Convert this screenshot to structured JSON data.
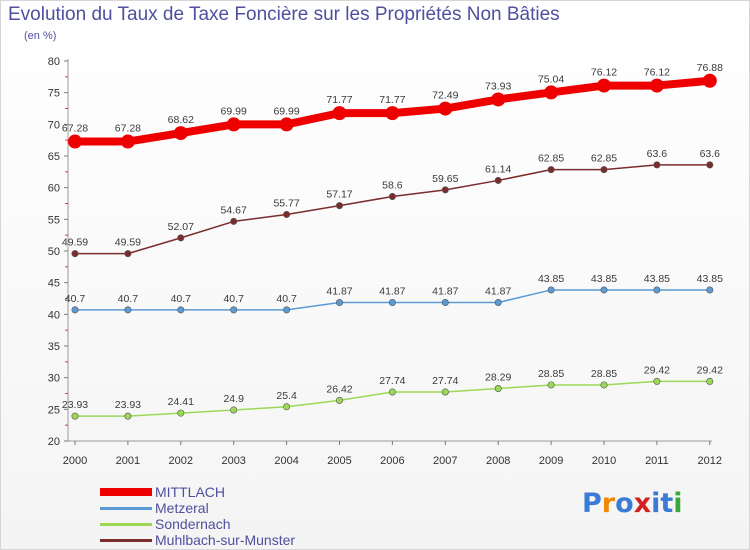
{
  "header": {
    "title": "Evolution du Taux de Taxe Foncière sur les Propriétés Non Bâties",
    "unit": "(en %)"
  },
  "logo": {
    "text": "Proxiti",
    "letters": [
      "P",
      "r",
      "o",
      "x",
      "i",
      "t",
      "i"
    ],
    "colors": [
      "#3a7bd5",
      "#f08a00",
      "#3a7bd5",
      "#d62020",
      "#3a7bd5",
      "#3a7bd5",
      "#39a839"
    ]
  },
  "colors": {
    "MITTLACH": "#ee0000",
    "Metzeral": "#5b9bd5",
    "Sondernach": "#9ad856",
    "Muhlbach-sur-Munster": "#7b2d2d"
  },
  "chart_data": {
    "type": "line",
    "title": "Evolution du Taux de Taxe Foncière sur les Propriétés Non Bâties",
    "ylabel": "(en %)",
    "xlabel": "",
    "categories": [
      "2000",
      "2001",
      "2002",
      "2003",
      "2004",
      "2005",
      "2006",
      "2007",
      "2008",
      "2009",
      "2010",
      "2011",
      "2012"
    ],
    "ylim": [
      20,
      80
    ],
    "yticks": [
      20,
      25,
      30,
      35,
      40,
      45,
      50,
      55,
      60,
      65,
      70,
      75,
      80
    ],
    "grid": false,
    "legend_position": "bottom-left",
    "series": [
      {
        "name": "MITTLACH",
        "values": [
          67.28,
          67.28,
          68.62,
          69.99,
          69.99,
          71.77,
          71.77,
          72.49,
          73.93,
          75.04,
          76.12,
          76.12,
          76.88
        ],
        "labels": [
          "67.28",
          "67.28",
          "68.62",
          "69.99",
          "69.99",
          "71.77",
          "71.77",
          "72.49",
          "73.93",
          "75.04",
          "76.12",
          "76.12",
          "76.88"
        ]
      },
      {
        "name": "Metzeral",
        "values": [
          40.7,
          40.7,
          40.7,
          40.7,
          40.7,
          41.87,
          41.87,
          41.87,
          41.87,
          43.85,
          43.85,
          43.85,
          43.85
        ],
        "labels": [
          "40.7",
          "40.7",
          "40.7",
          "40.7",
          "40.7",
          "41.87",
          "41.87",
          "41.87",
          "41.87",
          "43.85",
          "43.85",
          "43.85",
          "43.85"
        ]
      },
      {
        "name": "Sondernach",
        "values": [
          23.93,
          23.93,
          24.41,
          24.9,
          25.4,
          26.42,
          27.74,
          27.74,
          28.29,
          28.85,
          28.85,
          29.42,
          29.42
        ],
        "labels": [
          "23.93",
          "23.93",
          "24.41",
          "24.9",
          "25.4",
          "26.42",
          "27.74",
          "27.74",
          "28.29",
          "28.85",
          "28.85",
          "29.42",
          "29.42"
        ]
      },
      {
        "name": "Muhlbach-sur-Munster",
        "values": [
          49.59,
          49.59,
          52.07,
          54.67,
          55.77,
          57.17,
          58.6,
          59.65,
          61.14,
          62.85,
          62.85,
          63.6,
          63.6
        ],
        "labels": [
          "49.59",
          "49.59",
          "52.07",
          "54.67",
          "55.77",
          "57.17",
          "58.6",
          "59.65",
          "61.14",
          "62.85",
          "62.85",
          "63.6",
          "63.6"
        ]
      }
    ]
  }
}
